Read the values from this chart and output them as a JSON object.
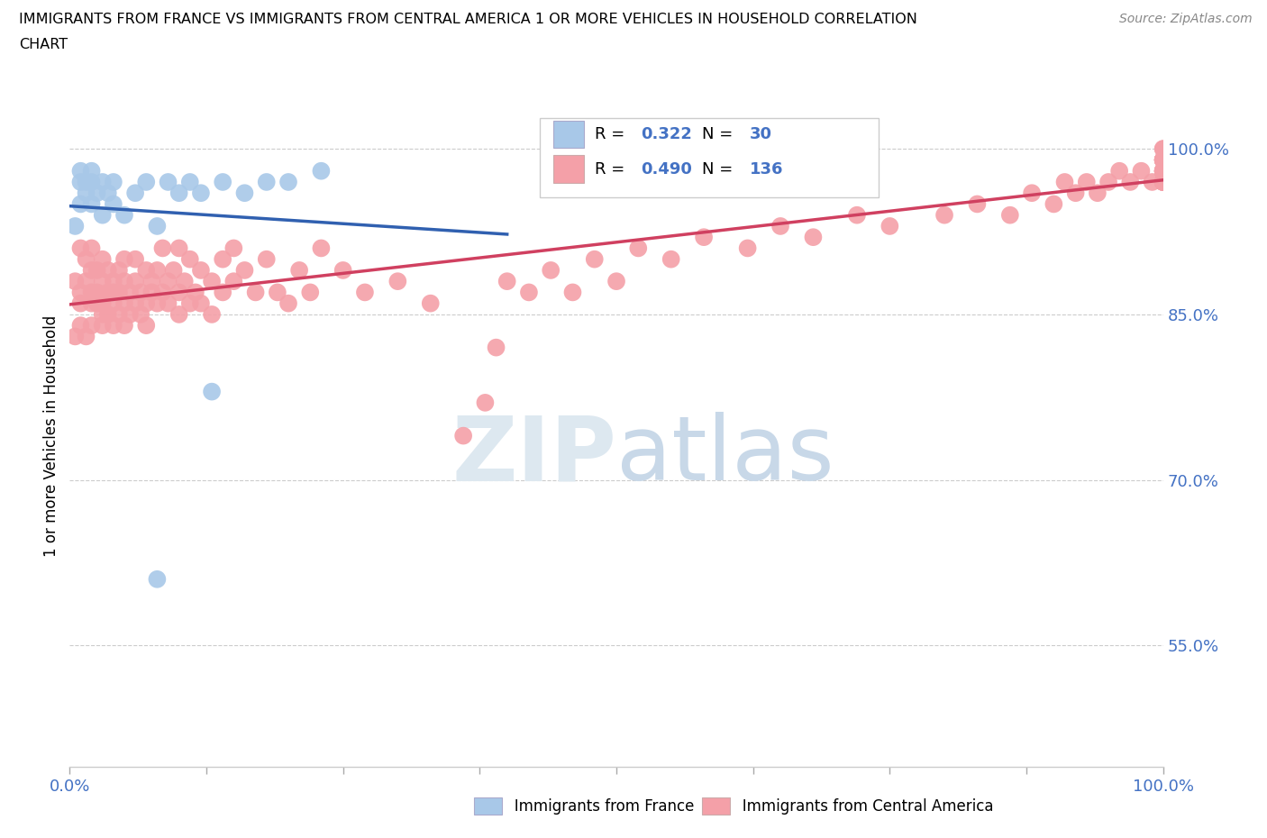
{
  "title_line1": "IMMIGRANTS FROM FRANCE VS IMMIGRANTS FROM CENTRAL AMERICA 1 OR MORE VEHICLES IN HOUSEHOLD CORRELATION",
  "title_line2": "CHART",
  "source_text": "Source: ZipAtlas.com",
  "ylabel": "1 or more Vehicles in Household",
  "xmin": 0.0,
  "xmax": 1.0,
  "ymin": 0.44,
  "ymax": 1.04,
  "yticks": [
    0.55,
    0.7,
    0.85,
    1.0
  ],
  "ytick_labels": [
    "55.0%",
    "70.0%",
    "85.0%",
    "100.0%"
  ],
  "xtick_positions": [
    0.0,
    0.125,
    0.25,
    0.375,
    0.5,
    0.625,
    0.75,
    0.875,
    1.0
  ],
  "xtick_label_left": "0.0%",
  "xtick_label_right": "100.0%",
  "france_color": "#a8c8e8",
  "france_edge": "#a8c8e8",
  "central_america_color": "#f4a0a8",
  "central_america_edge": "#f4a0a8",
  "france_line_color": "#3060b0",
  "central_america_line_color": "#d04060",
  "R_france": 0.322,
  "N_france": 30,
  "R_central": 0.49,
  "N_central": 136,
  "france_scatter_x": [
    0.005,
    0.01,
    0.01,
    0.01,
    0.015,
    0.015,
    0.02,
    0.02,
    0.02,
    0.025,
    0.03,
    0.03,
    0.035,
    0.04,
    0.04,
    0.05,
    0.06,
    0.07,
    0.08,
    0.09,
    0.1,
    0.11,
    0.12,
    0.14,
    0.16,
    0.18,
    0.2,
    0.23,
    0.08,
    0.13
  ],
  "france_scatter_y": [
    0.93,
    0.95,
    0.97,
    0.98,
    0.96,
    0.97,
    0.95,
    0.97,
    0.98,
    0.96,
    0.94,
    0.97,
    0.96,
    0.95,
    0.97,
    0.94,
    0.96,
    0.97,
    0.93,
    0.97,
    0.96,
    0.97,
    0.96,
    0.97,
    0.96,
    0.97,
    0.97,
    0.98,
    0.61,
    0.78
  ],
  "central_scatter_x": [
    0.005,
    0.005,
    0.01,
    0.01,
    0.01,
    0.01,
    0.015,
    0.015,
    0.015,
    0.02,
    0.02,
    0.02,
    0.02,
    0.02,
    0.025,
    0.025,
    0.025,
    0.03,
    0.03,
    0.03,
    0.03,
    0.03,
    0.035,
    0.035,
    0.035,
    0.04,
    0.04,
    0.04,
    0.04,
    0.045,
    0.045,
    0.045,
    0.05,
    0.05,
    0.05,
    0.05,
    0.055,
    0.055,
    0.06,
    0.06,
    0.06,
    0.065,
    0.065,
    0.07,
    0.07,
    0.07,
    0.075,
    0.075,
    0.08,
    0.08,
    0.085,
    0.085,
    0.09,
    0.09,
    0.095,
    0.1,
    0.1,
    0.1,
    0.105,
    0.11,
    0.11,
    0.115,
    0.12,
    0.12,
    0.13,
    0.13,
    0.14,
    0.14,
    0.15,
    0.15,
    0.16,
    0.17,
    0.18,
    0.19,
    0.2,
    0.21,
    0.22,
    0.23,
    0.25,
    0.27,
    0.3,
    0.33,
    0.36,
    0.38,
    0.39,
    0.4,
    0.42,
    0.44,
    0.46,
    0.48,
    0.5,
    0.52,
    0.55,
    0.58,
    0.62,
    0.65,
    0.68,
    0.72,
    0.75,
    0.8,
    0.83,
    0.86,
    0.88,
    0.9,
    0.91,
    0.92,
    0.93,
    0.94,
    0.95,
    0.96,
    0.97,
    0.98,
    0.99,
    1.0,
    1.0,
    1.0,
    1.0,
    1.0,
    1.0,
    1.0,
    1.0,
    1.0,
    1.0,
    1.0,
    1.0,
    1.0,
    1.0,
    1.0,
    1.0,
    1.0,
    1.0,
    1.0,
    1.0,
    1.0,
    1.0,
    1.0
  ],
  "central_scatter_y": [
    0.88,
    0.83,
    0.87,
    0.84,
    0.91,
    0.86,
    0.88,
    0.83,
    0.9,
    0.86,
    0.84,
    0.89,
    0.87,
    0.91,
    0.86,
    0.89,
    0.87,
    0.85,
    0.88,
    0.86,
    0.9,
    0.84,
    0.87,
    0.85,
    0.89,
    0.86,
    0.84,
    0.88,
    0.87,
    0.85,
    0.89,
    0.87,
    0.86,
    0.88,
    0.84,
    0.9,
    0.87,
    0.85,
    0.88,
    0.86,
    0.9,
    0.87,
    0.85,
    0.89,
    0.86,
    0.84,
    0.88,
    0.87,
    0.86,
    0.89,
    0.87,
    0.91,
    0.88,
    0.86,
    0.89,
    0.87,
    0.85,
    0.91,
    0.88,
    0.86,
    0.9,
    0.87,
    0.89,
    0.86,
    0.88,
    0.85,
    0.9,
    0.87,
    0.88,
    0.91,
    0.89,
    0.87,
    0.9,
    0.87,
    0.86,
    0.89,
    0.87,
    0.91,
    0.89,
    0.87,
    0.88,
    0.86,
    0.74,
    0.77,
    0.82,
    0.88,
    0.87,
    0.89,
    0.87,
    0.9,
    0.88,
    0.91,
    0.9,
    0.92,
    0.91,
    0.93,
    0.92,
    0.94,
    0.93,
    0.94,
    0.95,
    0.94,
    0.96,
    0.95,
    0.97,
    0.96,
    0.97,
    0.96,
    0.97,
    0.98,
    0.97,
    0.98,
    0.97,
    0.98,
    0.99,
    0.97,
    0.98,
    0.97,
    0.99,
    0.98,
    0.97,
    0.99,
    0.98,
    0.99,
    0.98,
    0.97,
    0.99,
    0.98,
    0.99,
    0.98,
    0.97,
    0.99,
    0.98,
    0.99,
    1.0,
    1.0
  ]
}
